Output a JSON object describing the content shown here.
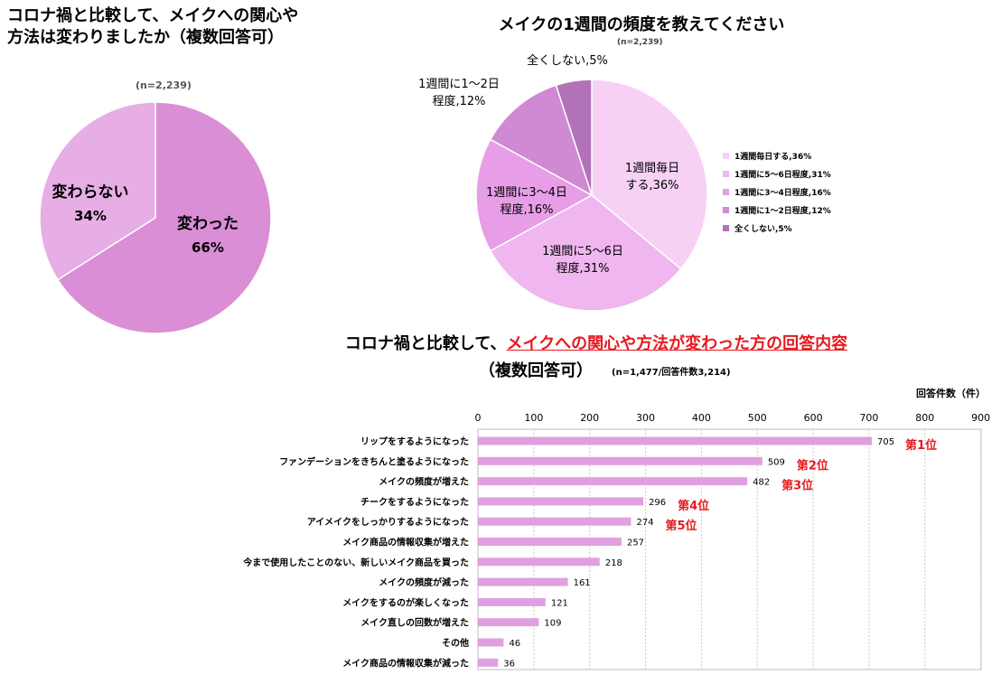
{
  "chart_data": [
    {
      "type": "pie",
      "title": "コロナ禍と比較して、メイクへの関心や方法は変わりましたか（複数回答可）",
      "n_label": "(n=2,239)",
      "slices": [
        {
          "label": "変わった",
          "value": 66,
          "value_label": "66%",
          "color": "#d98ed5"
        },
        {
          "label": "変わらない",
          "value": 34,
          "value_label": "34%",
          "color": "#e6aee4"
        }
      ]
    },
    {
      "type": "pie",
      "title": "メイクの1週間の頻度を教えてください",
      "n_label": "(n=2,239)",
      "slices": [
        {
          "label": "1週間毎日する",
          "short": "1週間毎日\nする,36%",
          "value": 36,
          "legend": "1週間毎日する,36%",
          "color": "#f6d1f5"
        },
        {
          "label": "1週間に5〜6日程度",
          "short": "1週間に5〜6日\n程度,31%",
          "value": 31,
          "legend": "1週間に5〜6日程度,31%",
          "color": "#efb6ef"
        },
        {
          "label": "1週間に3〜4日程度",
          "short": "1週間に3〜4日\n程度,16%",
          "value": 16,
          "legend": "1週間に3〜4日程度,16%",
          "color": "#e79ee6"
        },
        {
          "label": "1週間に1〜2日程度",
          "short": "1週間に1〜2日\n程度,12%",
          "value": 12,
          "legend": "1週間に1〜2日程度,12%",
          "color": "#cf8ad3"
        },
        {
          "label": "全くしない",
          "short": "全くしない,5%",
          "value": 5,
          "legend": "全くしない,5%",
          "color": "#b172b8"
        }
      ]
    },
    {
      "type": "bar",
      "orientation": "horizontal",
      "title_prefix": "コロナ禍と比較して、",
      "title_highlight": "メイクへの関心や方法が変わった方の回答内容",
      "subtitle": "（複数回答可）",
      "n_label": "(n=1,477/回答件数3,214)",
      "unit_label": "回答件数（件）",
      "xlim": [
        0,
        900
      ],
      "ticks": [
        0,
        100,
        200,
        300,
        400,
        500,
        600,
        700,
        800,
        900
      ],
      "bar_color": "#e0a0df",
      "categories": [
        "リップをするようになった",
        "ファンデーションをきちんと塗るようになった",
        "メイクの頻度が増えた",
        "チークをするようになった",
        "アイメイクをしっかりするようになった",
        "メイク商品の情報収集が増えた",
        "今まで使用したことのない、新しいメイク商品を買った",
        "メイクの頻度が減った",
        "メイクをするのが楽しくなった",
        "メイク直しの回数が増えた",
        "その他",
        "メイク商品の情報収集が減った"
      ],
      "values": [
        705,
        509,
        482,
        296,
        274,
        257,
        218,
        161,
        121,
        109,
        46,
        36
      ],
      "ranks": [
        "第1位",
        "第2位",
        "第3位",
        "第4位",
        "第5位"
      ],
      "rank_color": "#e8181e"
    }
  ]
}
